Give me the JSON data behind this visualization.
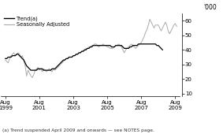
{
  "ylabel_right": "'000",
  "footnote": "(a) Trend suspended April 2009 and onwards — see NOTES page.",
  "legend_entries": [
    "Trend(a)",
    "Seasonally Adjusted"
  ],
  "legend_colors": [
    "#000000",
    "#aaaaaa"
  ],
  "ylim": [
    8,
    65
  ],
  "yticks": [
    10,
    20,
    30,
    40,
    50,
    60
  ],
  "xtick_labels": [
    "Aug\n1999",
    "Aug\n2001",
    "Aug\n2003",
    "Aug\n2005",
    "Aug\n2007",
    "Aug\n2009"
  ],
  "xtick_positions": [
    0,
    24,
    48,
    72,
    96,
    120
  ],
  "background_color": "#ffffff",
  "trend_color": "#000000",
  "seasonal_color": "#aaaaaa",
  "trend_linewidth": 0.9,
  "seasonal_linewidth": 0.7,
  "seasonal_data": [
    33,
    32,
    31,
    34,
    36,
    37,
    38,
    36,
    37,
    38,
    37,
    35,
    36,
    33,
    29,
    22,
    26,
    24,
    22,
    21,
    23,
    26,
    27,
    28,
    26,
    27,
    25,
    27,
    26,
    25,
    26,
    27,
    26,
    25,
    27,
    26,
    27,
    28,
    29,
    30,
    31,
    32,
    33,
    34,
    34,
    35,
    35,
    35,
    36,
    36,
    37,
    37,
    38,
    38,
    39,
    39,
    40,
    41,
    41,
    42,
    42,
    43,
    43,
    44,
    44,
    43,
    42,
    43,
    43,
    44,
    43,
    43,
    42,
    42,
    41,
    41,
    41,
    42,
    43,
    43,
    44,
    43,
    42,
    40,
    38,
    40,
    41,
    42,
    43,
    44,
    43,
    42,
    41,
    42,
    43,
    44,
    45,
    47,
    49,
    52,
    54,
    57,
    61,
    59,
    57,
    55,
    57,
    57,
    57,
    55,
    53,
    55,
    57,
    59,
    57,
    53,
    51,
    53,
    55,
    57,
    58,
    56
  ],
  "trend_data": [
    34,
    34,
    35,
    35,
    35,
    36,
    36,
    36,
    37,
    37,
    36,
    35,
    34,
    33,
    31,
    29,
    28,
    27,
    26,
    26,
    26,
    26,
    26,
    27,
    27,
    27,
    27,
    26,
    26,
    26,
    26,
    26,
    26,
    27,
    27,
    27,
    28,
    29,
    30,
    31,
    32,
    33,
    33,
    34,
    34,
    35,
    35,
    35,
    36,
    36,
    37,
    37,
    38,
    38,
    39,
    39,
    40,
    40,
    41,
    41,
    42,
    42,
    43,
    43,
    43,
    43,
    43,
    43,
    43,
    43,
    43,
    43,
    43,
    43,
    43,
    42,
    42,
    42,
    43,
    43,
    43,
    43,
    43,
    42,
    41,
    41,
    41,
    41,
    42,
    42,
    43,
    43,
    43,
    43,
    44,
    44,
    44,
    44,
    44,
    44,
    44,
    44,
    44,
    44,
    44,
    44,
    44,
    43,
    43,
    42,
    41,
    40,
    null,
    null,
    null,
    null,
    null,
    null,
    null,
    null
  ]
}
